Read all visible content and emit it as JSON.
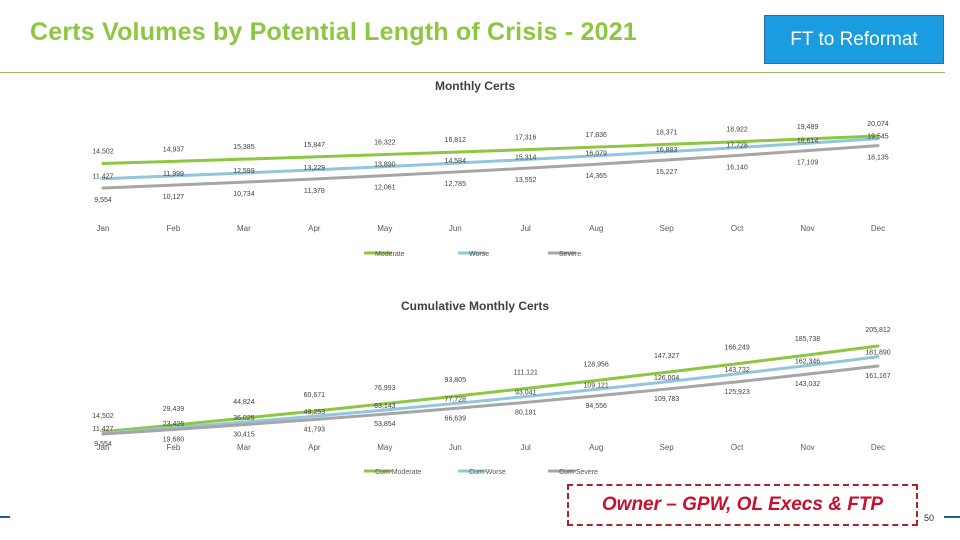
{
  "slide": {
    "title": "Certs Volumes by Potential Length of Crisis - 2021",
    "button_label": "FT to Reformat",
    "owner_label": "Owner – GPW, OL Execs & FTP",
    "page_number": "50"
  },
  "colors": {
    "title_green": "#8dc63f",
    "moderate": "#8dc63f",
    "worse": "#92c5de",
    "severe": "#a6a6a6",
    "button_blue": "#1c9ce0",
    "owner_red": "#c8102e"
  },
  "chart_data": [
    {
      "type": "line",
      "title": "Monthly Certs",
      "categories": [
        "Jan",
        "Feb",
        "Mar",
        "Apr",
        "May",
        "Jun",
        "Jul",
        "Aug",
        "Sep",
        "Oct",
        "Nov",
        "Dec"
      ],
      "series": [
        {
          "name": "Moderate",
          "values": [
            14502,
            14937,
            15385,
            15847,
            16322,
            16812,
            17316,
            17836,
            18371,
            18922,
            19489,
            20074
          ],
          "labels": [
            "14,502",
            "14,937",
            "15,385",
            "15,847",
            "16,322",
            "16,812",
            "17,316",
            "17,836",
            "18,371",
            "18,922",
            "19,489",
            "20,074"
          ]
        },
        {
          "name": "Worse",
          "values": [
            11427,
            11999,
            12599,
            13229,
            13890,
            14584,
            15314,
            16079,
            16883,
            17728,
            18614,
            19545
          ],
          "labels": [
            "11,427",
            "11,999",
            "12,599",
            "13,229",
            "13,890",
            "14,584",
            "15,314",
            "16,079",
            "16,883",
            "17,728",
            "18,614",
            "19,545"
          ]
        },
        {
          "name": "Severe",
          "values": [
            9554,
            10127,
            10734,
            11378,
            12061,
            12785,
            13552,
            14365,
            15227,
            16140,
            17109,
            18135
          ],
          "labels": [
            "9,554",
            "10,127",
            "10,734",
            "11,378",
            "12,061",
            "12,785",
            "13,552",
            "14,365",
            "15,227",
            "16,140",
            "17,109",
            "18,135"
          ]
        }
      ],
      "legend_position": "bottom",
      "grid": false
    },
    {
      "type": "line",
      "title": "Cumulative Monthly Certs",
      "categories": [
        "Jan",
        "Feb",
        "Mar",
        "Apr",
        "May",
        "Jun",
        "Jul",
        "Aug",
        "Sep",
        "Oct",
        "Nov",
        "Dec"
      ],
      "series": [
        {
          "name": "Cum Moderate",
          "values": [
            14502,
            29439,
            44824,
            60671,
            76993,
            93805,
            111121,
            128956,
            147327,
            166249,
            185738,
            205812
          ],
          "labels": [
            "14,502",
            "29,439",
            "44,824",
            "60,671",
            "76,993",
            "93,805",
            "111,121",
            "128,956",
            "147,327",
            "166,249",
            "185,738",
            "205,812"
          ]
        },
        {
          "name": "Cum Worse",
          "values": [
            11427,
            23426,
            36025,
            49253,
            63143,
            77728,
            93041,
            109121,
            126004,
            143732,
            162346,
            181890
          ],
          "labels": [
            "11,427",
            "23,426",
            "36,025",
            "49,253",
            "63,143",
            "77,728",
            "93,041",
            "109,121",
            "126,004",
            "143,732",
            "162,346",
            "181,890"
          ]
        },
        {
          "name": "Cum Severe",
          "values": [
            9554,
            19680,
            30415,
            41793,
            53854,
            66639,
            80191,
            94556,
            109783,
            125923,
            143032,
            161167
          ],
          "labels": [
            "9,554",
            "19,680",
            "30,415",
            "41,793",
            "53,854",
            "66,639",
            "80,191",
            "94,556",
            "109,783",
            "125,923",
            "143,032",
            "161,167"
          ]
        }
      ],
      "legend_position": "bottom",
      "grid": false
    }
  ]
}
